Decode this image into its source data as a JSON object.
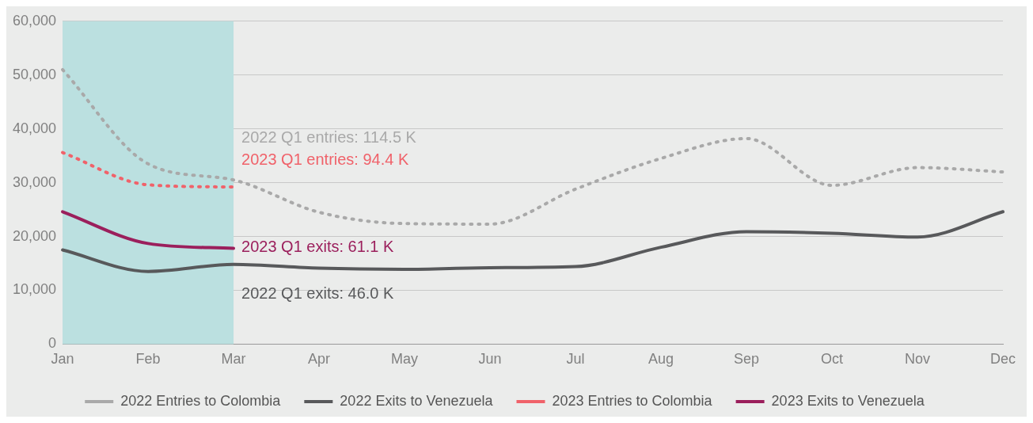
{
  "chart_data": {
    "type": "line",
    "categories": [
      "Jan",
      "Feb",
      "Mar",
      "Apr",
      "May",
      "Jun",
      "Jul",
      "Aug",
      "Sep",
      "Oct",
      "Nov",
      "Dec"
    ],
    "series": [
      {
        "name": "2022 Entries to Colombia",
        "color": "#a9a9a9",
        "line_style": "dotted",
        "values": [
          51000,
          33500,
          30500,
          24500,
          22400,
          22300,
          28800,
          34500,
          38200,
          29500,
          32800,
          32000
        ]
      },
      {
        "name": "2022 Exits to Venezuela",
        "color": "#58595b",
        "line_style": "solid",
        "values": [
          17500,
          13500,
          14800,
          14100,
          13900,
          14200,
          14400,
          18000,
          20900,
          20600,
          19900,
          24600
        ]
      },
      {
        "name": "2023 Entries to Colombia",
        "color": "#f0626a",
        "line_style": "dotted",
        "values": [
          35600,
          29600,
          29200,
          null,
          null,
          null,
          null,
          null,
          null,
          null,
          null,
          null
        ]
      },
      {
        "name": "2023 Exits to Venezuela",
        "color": "#9b1f5c",
        "line_style": "solid",
        "values": [
          24600,
          18700,
          17800,
          null,
          null,
          null,
          null,
          null,
          null,
          null,
          null,
          null
        ]
      }
    ],
    "ylim": [
      0,
      60000
    ],
    "yticks": [
      0,
      {
        "value": 10000,
        "label": "10,000"
      },
      {
        "value": 20000,
        "label": "20,000"
      },
      {
        "value": 30000,
        "label": "30,000"
      },
      {
        "value": 40000,
        "label": "40,000"
      },
      {
        "value": 50000,
        "label": "50,000"
      },
      {
        "value": 60000,
        "label": "60,000"
      }
    ],
    "grid": "y",
    "legend": "bottom",
    "marker": "none",
    "bands": [
      {
        "axis": "x",
        "from": "Jan",
        "to": "Mar",
        "color": "#bbe0e0"
      }
    ],
    "annotations": [
      {
        "text": "2022 Q1 entries: 114.5 K",
        "x": "Mar",
        "y": 38200
      },
      {
        "text": "2023 Q1 entries: 94.4 K",
        "x": "Mar",
        "y": 34200
      },
      {
        "text": "2023 Q1 exits: 61.1 K",
        "x": "Mar",
        "y": 18000
      },
      {
        "text": "2022 Q1 exits: 46.0 K",
        "x": "Mar",
        "y": 9300
      }
    ]
  }
}
